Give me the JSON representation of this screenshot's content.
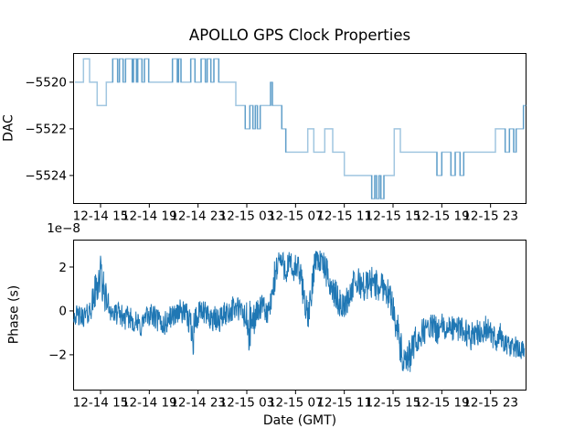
{
  "title": "APOLLO GPS Clock Properties",
  "colors": {
    "line": "#1f77b4",
    "axis": "#000000",
    "background": "#ffffff"
  },
  "chart_data": [
    {
      "type": "line",
      "subtype": "step-post",
      "name": "dac-history",
      "ylabel": "DAC",
      "x_tick_labels": [
        "12-14 15",
        "12-14 19",
        "12-14 23",
        "12-15 03",
        "12-15 07",
        "12-15 11",
        "12-15 15",
        "12-15 19",
        "12-15 23"
      ],
      "x_tick_values": [
        3,
        7,
        11,
        15,
        19,
        23,
        27,
        31,
        35
      ],
      "x_hours_origin": "12-14 12:00",
      "y_tick_labels": [
        "−5520",
        "−5522",
        "−5524"
      ],
      "y_tick_values": [
        -5520,
        -5522,
        -5524
      ],
      "xlim": [
        0.75,
        37.95
      ],
      "ylim": [
        -5525.22,
        -5518.75
      ],
      "grid": false,
      "legend": false,
      "steps": [
        [
          0.9,
          -5520
        ],
        [
          1.6,
          -5519
        ],
        [
          2.1,
          -5520
        ],
        [
          2.72,
          -5521
        ],
        [
          3.47,
          -5520
        ],
        [
          4.0,
          -5519
        ],
        [
          4.4,
          -5520
        ],
        [
          4.55,
          -5519
        ],
        [
          4.85,
          -5520
        ],
        [
          5.05,
          -5519
        ],
        [
          5.6,
          -5520
        ],
        [
          5.7,
          -5519
        ],
        [
          5.95,
          -5520
        ],
        [
          6.05,
          -5519
        ],
        [
          6.4,
          -5520
        ],
        [
          6.6,
          -5519
        ],
        [
          6.95,
          -5520
        ],
        [
          8.9,
          -5519
        ],
        [
          9.3,
          -5520
        ],
        [
          9.4,
          -5519
        ],
        [
          9.6,
          -5520
        ],
        [
          10.4,
          -5519
        ],
        [
          10.75,
          -5520
        ],
        [
          11.25,
          -5519
        ],
        [
          11.6,
          -5520
        ],
        [
          11.75,
          -5519
        ],
        [
          12.05,
          -5520
        ],
        [
          12.3,
          -5519
        ],
        [
          12.7,
          -5520
        ],
        [
          14.1,
          -5521
        ],
        [
          14.87,
          -5522
        ],
        [
          15.25,
          -5521
        ],
        [
          15.5,
          -5522
        ],
        [
          15.7,
          -5521
        ],
        [
          15.87,
          -5522
        ],
        [
          16.1,
          -5521
        ],
        [
          16.95,
          -5520
        ],
        [
          17.1,
          -5521
        ],
        [
          17.87,
          -5522
        ],
        [
          18.2,
          -5523
        ],
        [
          20.0,
          -5522
        ],
        [
          20.5,
          -5523
        ],
        [
          21.4,
          -5522
        ],
        [
          22.05,
          -5523
        ],
        [
          23.0,
          -5524
        ],
        [
          25.25,
          -5525
        ],
        [
          25.5,
          -5524
        ],
        [
          25.65,
          -5525
        ],
        [
          25.85,
          -5524
        ],
        [
          26.0,
          -5525
        ],
        [
          26.25,
          -5524
        ],
        [
          27.1,
          -5522
        ],
        [
          27.6,
          -5523
        ],
        [
          30.6,
          -5524
        ],
        [
          31.0,
          -5523
        ],
        [
          31.75,
          -5524
        ],
        [
          32.1,
          -5523
        ],
        [
          32.5,
          -5524
        ],
        [
          32.8,
          -5523
        ],
        [
          35.4,
          -5522
        ],
        [
          36.2,
          -5523
        ],
        [
          36.55,
          -5522
        ],
        [
          36.9,
          -5523
        ],
        [
          37.1,
          -5522
        ],
        [
          37.7,
          -5521
        ],
        [
          37.95,
          -5521
        ]
      ]
    },
    {
      "type": "line",
      "subtype": "noisy",
      "name": "phase-history",
      "ylabel": "Phase (s)",
      "xlabel": "Date (GMT)",
      "offset_text": "1e−8",
      "x_tick_labels": [
        "12-14 15",
        "12-14 19",
        "12-14 23",
        "12-15 03",
        "12-15 07",
        "12-15 11",
        "12-15 15",
        "12-15 19",
        "12-15 23"
      ],
      "x_tick_values": [
        3,
        7,
        11,
        15,
        19,
        23,
        27,
        31,
        35
      ],
      "x_hours_origin": "12-14 12:00",
      "y_tick_labels": [
        "2",
        "0",
        "−2"
      ],
      "y_tick_values": [
        2,
        0,
        -2
      ],
      "y_scale_factor": 1e-08,
      "xlim": [
        0.75,
        37.95
      ],
      "ylim": [
        -3.63,
        3.25
      ],
      "grid": false,
      "legend": false,
      "noise_seed": 42,
      "anchors": [
        [
          0.8,
          -0.15,
          0.45
        ],
        [
          1.4,
          -0.3,
          0.5
        ],
        [
          2.0,
          -0.15,
          0.5
        ],
        [
          2.4,
          0.5,
          0.7
        ],
        [
          2.75,
          1.3,
          1.0
        ],
        [
          3.0,
          1.6,
          1.2
        ],
        [
          3.3,
          0.8,
          0.8
        ],
        [
          3.7,
          0.2,
          0.55
        ],
        [
          4.1,
          -0.2,
          0.5
        ],
        [
          4.5,
          -0.1,
          0.5
        ],
        [
          5.0,
          -0.35,
          0.55
        ],
        [
          5.5,
          -0.3,
          0.5
        ],
        [
          5.9,
          -0.6,
          0.6
        ],
        [
          6.3,
          -0.7,
          0.6
        ],
        [
          6.7,
          -0.3,
          0.5
        ],
        [
          7.1,
          -0.15,
          0.5
        ],
        [
          7.5,
          -0.35,
          0.6
        ],
        [
          7.9,
          -0.55,
          0.6
        ],
        [
          8.3,
          -0.6,
          0.6
        ],
        [
          8.7,
          -0.3,
          0.55
        ],
        [
          9.1,
          -0.15,
          0.5
        ],
        [
          9.5,
          0.0,
          0.55
        ],
        [
          9.9,
          -0.15,
          0.55
        ],
        [
          10.3,
          -0.45,
          0.7
        ],
        [
          10.6,
          -0.8,
          1.3
        ],
        [
          10.9,
          -0.35,
          0.7
        ],
        [
          11.3,
          -0.05,
          0.55
        ],
        [
          11.7,
          -0.2,
          0.6
        ],
        [
          12.1,
          -0.3,
          0.6
        ],
        [
          12.5,
          -0.5,
          0.7
        ],
        [
          12.9,
          -0.3,
          0.6
        ],
        [
          13.3,
          -0.1,
          0.55
        ],
        [
          13.7,
          0.05,
          0.6
        ],
        [
          14.1,
          0.15,
          0.6
        ],
        [
          14.5,
          0.0,
          0.6
        ],
        [
          14.9,
          -0.35,
          0.8
        ],
        [
          15.2,
          -0.9,
          1.4
        ],
        [
          15.5,
          -0.45,
          0.8
        ],
        [
          15.9,
          0.0,
          0.6
        ],
        [
          16.3,
          0.15,
          0.6
        ],
        [
          16.7,
          -0.1,
          0.55
        ],
        [
          17.0,
          0.3,
          0.7
        ],
        [
          17.3,
          1.5,
          0.9
        ],
        [
          17.6,
          2.4,
          0.6
        ],
        [
          17.9,
          2.2,
          0.6
        ],
        [
          18.2,
          1.9,
          0.7
        ],
        [
          18.5,
          2.1,
          0.7
        ],
        [
          18.8,
          1.8,
          0.7
        ],
        [
          19.1,
          2.0,
          0.7
        ],
        [
          19.4,
          1.6,
          0.7
        ],
        [
          19.7,
          0.7,
          0.8
        ],
        [
          20.0,
          -0.3,
          0.6
        ],
        [
          20.3,
          0.6,
          0.9
        ],
        [
          20.6,
          2.5,
          0.6
        ],
        [
          20.9,
          2.3,
          0.6
        ],
        [
          21.2,
          2.2,
          0.6
        ],
        [
          21.5,
          1.8,
          0.7
        ],
        [
          21.8,
          1.3,
          0.7
        ],
        [
          22.1,
          0.9,
          0.7
        ],
        [
          22.4,
          0.6,
          0.7
        ],
        [
          22.7,
          0.3,
          0.6
        ],
        [
          23.0,
          0.2,
          0.6
        ],
        [
          23.4,
          0.7,
          0.7
        ],
        [
          23.8,
          1.2,
          0.7
        ],
        [
          24.2,
          1.3,
          0.7
        ],
        [
          24.6,
          1.1,
          0.7
        ],
        [
          25.0,
          1.2,
          0.75
        ],
        [
          25.4,
          1.4,
          0.8
        ],
        [
          25.8,
          1.0,
          0.7
        ],
        [
          26.2,
          1.2,
          0.75
        ],
        [
          26.6,
          0.8,
          0.7
        ],
        [
          27.0,
          0.2,
          0.7
        ],
        [
          27.4,
          -1.0,
          0.9
        ],
        [
          27.8,
          -2.3,
          0.8
        ],
        [
          28.1,
          -2.5,
          0.7
        ],
        [
          28.4,
          -2.0,
          0.9
        ],
        [
          28.7,
          -1.6,
          0.8
        ],
        [
          29.0,
          -1.3,
          0.7
        ],
        [
          29.4,
          -1.0,
          0.65
        ],
        [
          29.8,
          -0.8,
          0.6
        ],
        [
          30.2,
          -0.7,
          0.6
        ],
        [
          30.6,
          -0.9,
          0.65
        ],
        [
          31.0,
          -0.7,
          0.6
        ],
        [
          31.4,
          -0.9,
          0.6
        ],
        [
          31.8,
          -0.75,
          0.6
        ],
        [
          32.2,
          -0.9,
          0.6
        ],
        [
          32.6,
          -0.7,
          0.6
        ],
        [
          33.0,
          -1.0,
          0.65
        ],
        [
          33.4,
          -1.2,
          0.6
        ],
        [
          33.8,
          -0.85,
          0.65
        ],
        [
          34.2,
          -1.1,
          0.6
        ],
        [
          34.6,
          -0.8,
          0.6
        ],
        [
          35.0,
          -1.05,
          0.6
        ],
        [
          35.4,
          -1.3,
          0.6
        ],
        [
          35.8,
          -1.1,
          0.6
        ],
        [
          36.2,
          -1.5,
          0.55
        ],
        [
          36.6,
          -1.7,
          0.5
        ],
        [
          37.0,
          -1.6,
          0.5
        ],
        [
          37.4,
          -1.85,
          0.45
        ],
        [
          37.8,
          -1.75,
          0.4
        ]
      ]
    }
  ]
}
